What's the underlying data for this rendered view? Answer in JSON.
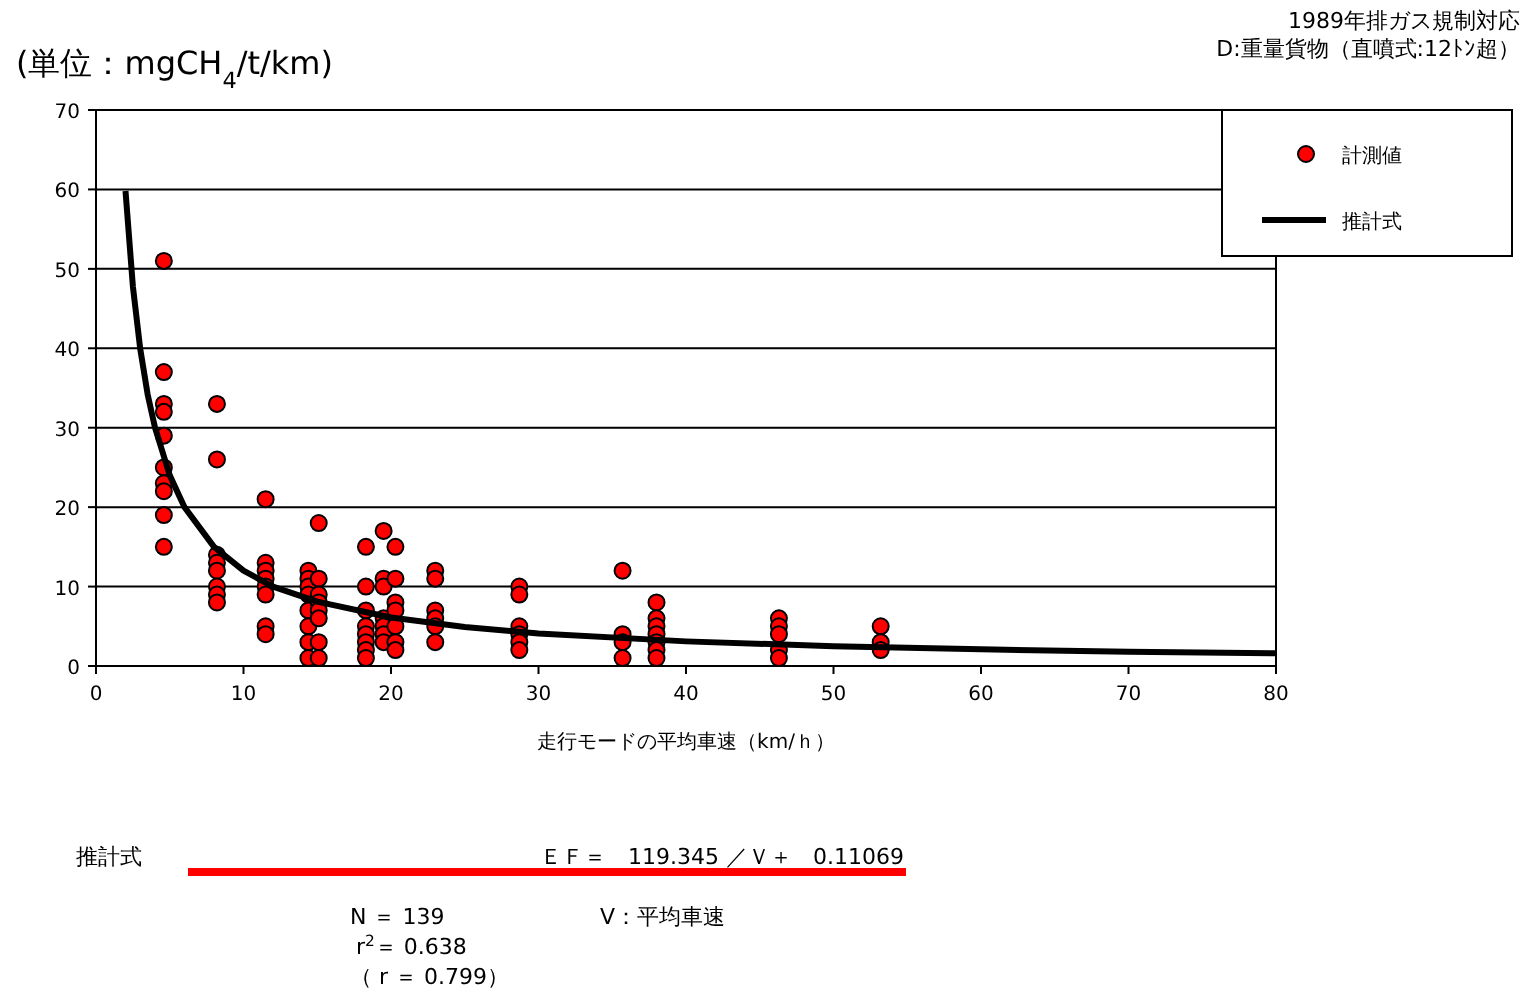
{
  "chart_data": {
    "type": "scatter",
    "title": "1989年排ガス規制対応",
    "subtitle": "D:重量貨物（直噴式:12ﾄﾝ超）",
    "ylabel": "(単位：mgCH$_{4}$/t/km)",
    "xlabel": "走行モードの平均車速（km/ｈ）",
    "xlim": [
      0,
      80
    ],
    "ylim": [
      0,
      70
    ],
    "xticks": [
      0,
      10,
      20,
      30,
      40,
      50,
      60,
      70,
      80
    ],
    "yticks": [
      0,
      10,
      20,
      30,
      40,
      50,
      60,
      70
    ],
    "grid": "y",
    "legend": "top right",
    "marker": "circle",
    "series": [
      {
        "name": "計測値",
        "type": "scatter",
        "color": "#ff0000",
        "x": [
          4.6,
          4.6,
          4.6,
          4.6,
          4.6,
          4.6,
          4.6,
          4.6,
          4.6,
          4.6,
          8.2,
          8.2,
          8.2,
          8.2,
          8.2,
          8.2,
          8.2,
          8.2,
          11.5,
          11.5,
          11.5,
          11.5,
          11.5,
          11.5,
          11.5,
          11.5,
          14.4,
          14.4,
          14.4,
          14.4,
          14.4,
          14.4,
          14.4,
          14.4,
          15.1,
          15.1,
          15.1,
          15.1,
          15.1,
          15.1,
          15.1,
          15.1,
          18.3,
          18.3,
          18.3,
          18.3,
          18.3,
          18.3,
          18.3,
          18.3,
          19.5,
          19.5,
          19.5,
          19.5,
          19.5,
          19.5,
          19.5,
          20.3,
          20.3,
          20.3,
          20.3,
          20.3,
          20.3,
          20.3,
          23,
          23,
          23,
          23,
          23,
          23,
          28.7,
          28.7,
          28.7,
          28.7,
          28.7,
          28.7,
          35.7,
          35.7,
          35.7,
          35.7,
          38,
          38,
          38,
          38,
          38,
          38,
          38,
          46.3,
          46.3,
          46.3,
          46.3,
          46.3,
          53.2,
          53.2,
          53.2
        ],
        "values": [
          51,
          37,
          33,
          32,
          29,
          25,
          23,
          22,
          19,
          15,
          33,
          26,
          14,
          13,
          12,
          10,
          9,
          8,
          21,
          13,
          12,
          11,
          10,
          9,
          5,
          4,
          12,
          11,
          10,
          9,
          7,
          5,
          3,
          1,
          18,
          11,
          9,
          8,
          7,
          6,
          3,
          1,
          15,
          10,
          7,
          5,
          4,
          3,
          2,
          1,
          17,
          11,
          10,
          6,
          5,
          4,
          3,
          15,
          11,
          8,
          7,
          5,
          3,
          2,
          12,
          11,
          7,
          6,
          5,
          3,
          10,
          9,
          5,
          4,
          3,
          2,
          12,
          4,
          3,
          1,
          8,
          6,
          5,
          4,
          3,
          2,
          1,
          6,
          5,
          4,
          2,
          1,
          5,
          3,
          2
        ]
      },
      {
        "name": "推計式",
        "type": "line",
        "color": "#000000",
        "marker": "none",
        "x": [
          2,
          2.5,
          3,
          3.5,
          4,
          5,
          6,
          8,
          10,
          12,
          15,
          20,
          25,
          30,
          40,
          50,
          60,
          70,
          80
        ],
        "values": [
          59.8,
          47.8,
          39.9,
          34.2,
          30,
          24,
          20,
          15,
          12,
          10,
          8.1,
          6.1,
          4.9,
          4.1,
          3.1,
          2.5,
          2.1,
          1.8,
          1.6
        ]
      }
    ],
    "annotations": [
      "推計式",
      "ＥＦ＝　119.345 ／Ｖ＋",
      "0.11069",
      "N ＝ 139",
      "V：平均車速",
      "r$^{2}$＝ 0.638",
      "（ r ＝ 0.799）"
    ]
  }
}
